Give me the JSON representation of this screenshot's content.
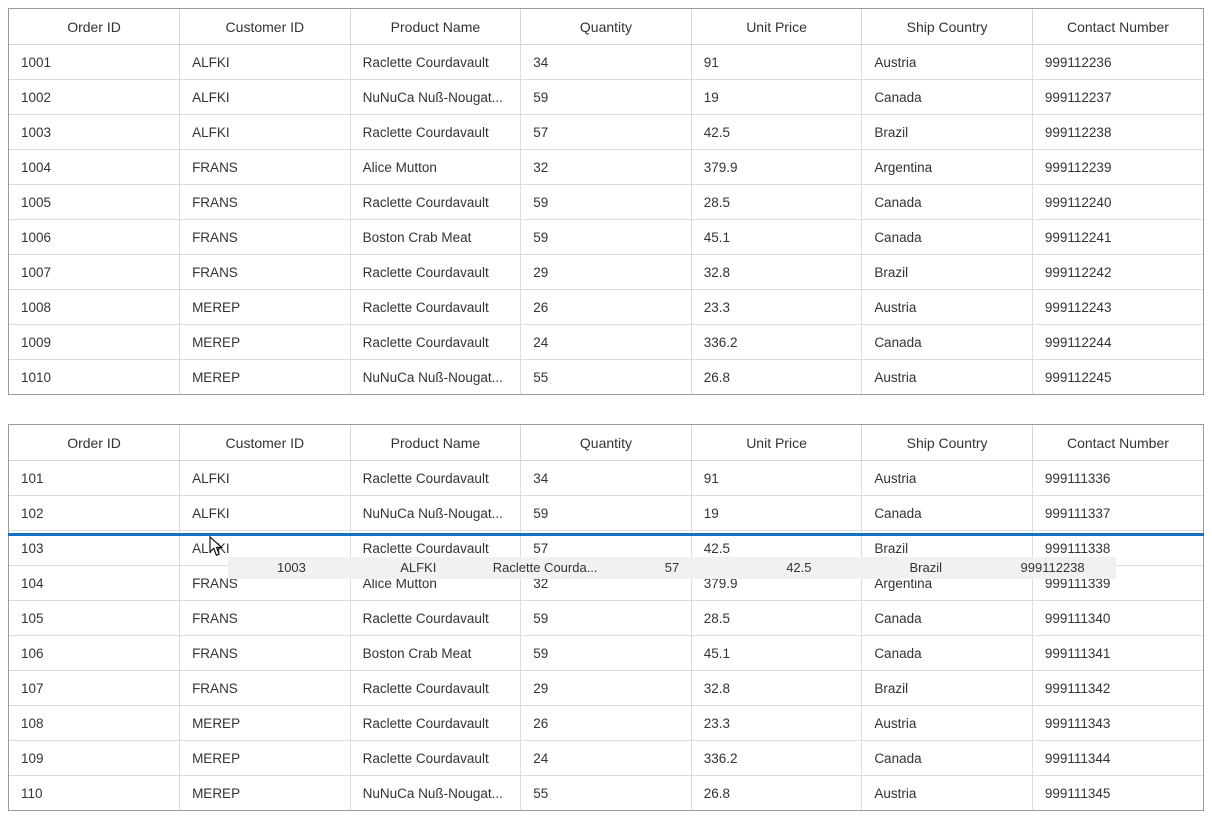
{
  "columns": [
    "Order ID",
    "Customer ID",
    "Product Name",
    "Quantity",
    "Unit Price",
    "Ship Country",
    "Contact Number"
  ],
  "grid_top": {
    "rows": [
      [
        "1001",
        "ALFKI",
        "Raclette Courdavault",
        "34",
        "91",
        "Austria",
        "999112236"
      ],
      [
        "1002",
        "ALFKI",
        "NuNuCa Nuß-Nougat...",
        "59",
        "19",
        "Canada",
        "999112237"
      ],
      [
        "1003",
        "ALFKI",
        "Raclette Courdavault",
        "57",
        "42.5",
        "Brazil",
        "999112238"
      ],
      [
        "1004",
        "FRANS",
        "Alice Mutton",
        "32",
        "379.9",
        "Argentina",
        "999112239"
      ],
      [
        "1005",
        "FRANS",
        "Raclette Courdavault",
        "59",
        "28.5",
        "Canada",
        "999112240"
      ],
      [
        "1006",
        "FRANS",
        "Boston Crab Meat",
        "59",
        "45.1",
        "Canada",
        "999112241"
      ],
      [
        "1007",
        "FRANS",
        "Raclette Courdavault",
        "29",
        "32.8",
        "Brazil",
        "999112242"
      ],
      [
        "1008",
        "MEREP",
        "Raclette Courdavault",
        "26",
        "23.3",
        "Austria",
        "999112243"
      ],
      [
        "1009",
        "MEREP",
        "Raclette Courdavault",
        "24",
        "336.2",
        "Canada",
        "999112244"
      ],
      [
        "1010",
        "MEREP",
        "NuNuCa Nuß-Nougat...",
        "55",
        "26.8",
        "Austria",
        "999112245"
      ]
    ]
  },
  "grid_bottom": {
    "rows": [
      [
        "101",
        "ALFKI",
        "Raclette Courdavault",
        "34",
        "91",
        "Austria",
        "999111336"
      ],
      [
        "102",
        "ALFKI",
        "NuNuCa Nuß-Nougat...",
        "59",
        "19",
        "Canada",
        "999111337"
      ],
      [
        "103",
        "ALFKI",
        "Raclette Courdavault",
        "57",
        "42.5",
        "Brazil",
        "999111338"
      ],
      [
        "104",
        "FRANS",
        "Alice Mutton",
        "32",
        "379.9",
        "Argentina",
        "999111339"
      ],
      [
        "105",
        "FRANS",
        "Raclette Courdavault",
        "59",
        "28.5",
        "Canada",
        "999111340"
      ],
      [
        "106",
        "FRANS",
        "Boston Crab Meat",
        "59",
        "45.1",
        "Canada",
        "999111341"
      ],
      [
        "107",
        "FRANS",
        "Raclette Courdavault",
        "29",
        "32.8",
        "Brazil",
        "999111342"
      ],
      [
        "108",
        "MEREP",
        "Raclette Courdavault",
        "26",
        "23.3",
        "Austria",
        "999111343"
      ],
      [
        "109",
        "MEREP",
        "Raclette Courdavault",
        "24",
        "336.2",
        "Canada",
        "999111344"
      ],
      [
        "110",
        "MEREP",
        "NuNuCa Nuß-Nougat...",
        "55",
        "26.8",
        "Austria",
        "999111345"
      ]
    ]
  },
  "drag_drop": {
    "ghost_row": [
      "1003",
      "ALFKI",
      "Raclette Courda...",
      "57",
      "42.5",
      "Brazil",
      "999112238"
    ],
    "drop_indicator_color": "#1570bf"
  },
  "colors": {
    "text": "#333333",
    "border_inner": "#dcdcdc",
    "border_outer": "#9b9b9b",
    "ghost_background": "#f0f0f0",
    "drop_indicator": "#1570bf"
  }
}
